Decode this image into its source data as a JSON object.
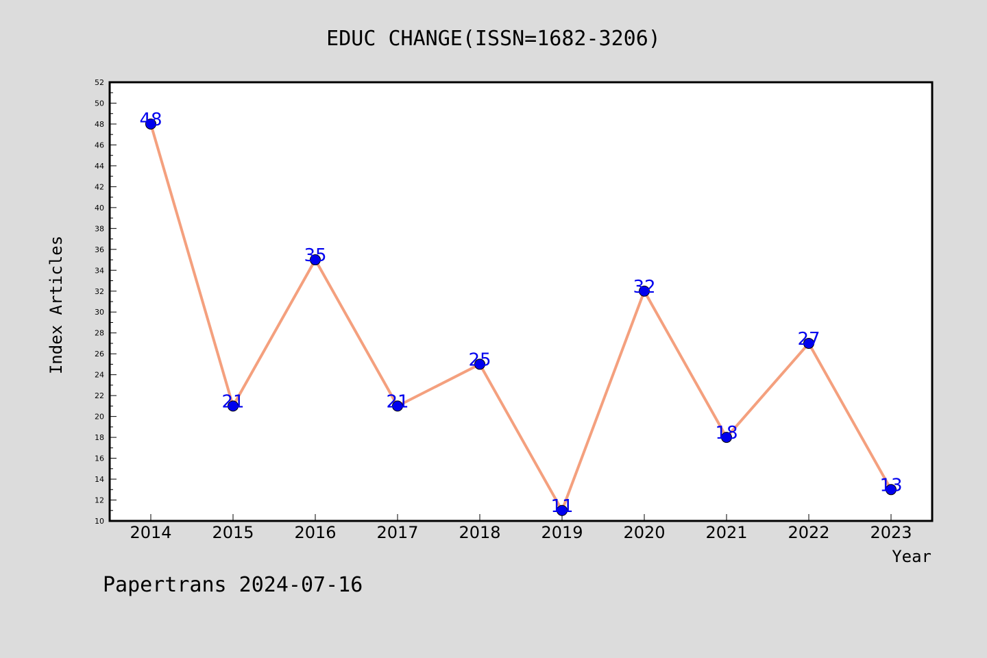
{
  "chart_data": {
    "type": "line",
    "title": "EDUC CHANGE(ISSN=1682-3206)",
    "xlabel": "Year",
    "ylabel": "Index Articles",
    "categories": [
      "2014",
      "2015",
      "2016",
      "2017",
      "2018",
      "2019",
      "2020",
      "2021",
      "2022",
      "2023"
    ],
    "values": [
      48,
      21,
      35,
      21,
      25,
      11,
      32,
      18,
      27,
      13
    ],
    "ylim": [
      10,
      52
    ],
    "yticks": [
      10,
      12,
      14,
      16,
      18,
      20,
      22,
      24,
      26,
      28,
      30,
      32,
      34,
      36,
      38,
      40,
      42,
      44,
      46,
      48,
      50,
      52
    ],
    "grid": false,
    "legend": "none",
    "line_color": "#f4a07e",
    "marker_color": "#0000ee",
    "label_color": "#0000ee",
    "footer": "Papertrans 2024-07-16"
  }
}
